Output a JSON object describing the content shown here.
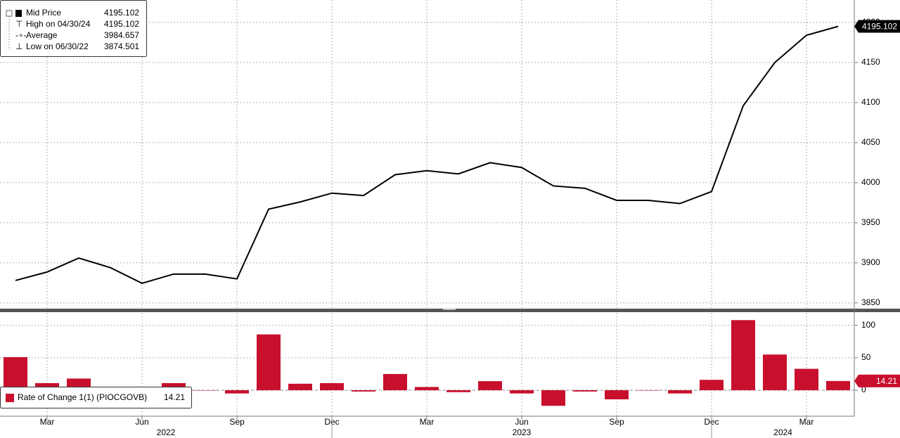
{
  "chart_data": [
    {
      "type": "line",
      "x": [
        "2022-02",
        "2022-03",
        "2022-04",
        "2022-05",
        "2022-06",
        "2022-07",
        "2022-08",
        "2022-09",
        "2022-10",
        "2022-11",
        "2022-12",
        "2023-01",
        "2023-02",
        "2023-03",
        "2023-04",
        "2023-05",
        "2023-06",
        "2023-07",
        "2023-08",
        "2023-09",
        "2023-10",
        "2023-11",
        "2023-12",
        "2024-01",
        "2024-02",
        "2024-03",
        "2024-04"
      ],
      "categories": [
        null,
        "Mar",
        null,
        null,
        "Jun",
        null,
        null,
        "Sep",
        null,
        null,
        "Dec",
        null,
        null,
        "Mar",
        null,
        null,
        "Jun",
        null,
        null,
        "Sep",
        null,
        null,
        "Dec",
        null,
        null,
        "Mar",
        null
      ],
      "years": [
        "2022",
        "2023",
        "2024"
      ],
      "series": [
        {
          "name": "Mid Price",
          "color": "#000000",
          "values": [
            3878,
            3888.6,
            3906,
            3894,
            3874.5,
            3886,
            3886,
            3880,
            3967,
            3976,
            3987,
            3984,
            4010,
            4015,
            4011,
            4025,
            4019,
            3996,
            3993,
            3978,
            3978,
            3974,
            3989,
            4096,
            4150,
            4184,
            4195.102
          ]
        }
      ],
      "stats": [
        {
          "label": "Mid Price",
          "value": 4195.102
        },
        {
          "label": "High on 04/30/24",
          "value": 4195.102
        },
        {
          "label": "Average",
          "value": 3984.657
        },
        {
          "label": "Low on 06/30/22",
          "value": 3874.501
        }
      ],
      "ylim": [
        3842,
        4228
      ],
      "yticks": [
        3850,
        3900,
        3950,
        4000,
        4050,
        4100,
        4150,
        4200
      ],
      "grid": true
    },
    {
      "type": "bar",
      "series": [
        {
          "name": "Rate of Change 1(1) (PIOCGOVB)",
          "color": "#c8102e",
          "values": [
            51,
            11,
            18,
            0.5,
            0,
            11,
            0,
            -5,
            86,
            10,
            11,
            -2,
            25,
            5,
            -3,
            14,
            -5,
            -24,
            -2,
            -14,
            0,
            -5,
            16,
            108,
            55,
            33,
            14.21
          ]
        }
      ],
      "ylim": [
        -40,
        117
      ],
      "yticks": [
        0,
        50,
        100
      ],
      "grid": true
    }
  ]
}
